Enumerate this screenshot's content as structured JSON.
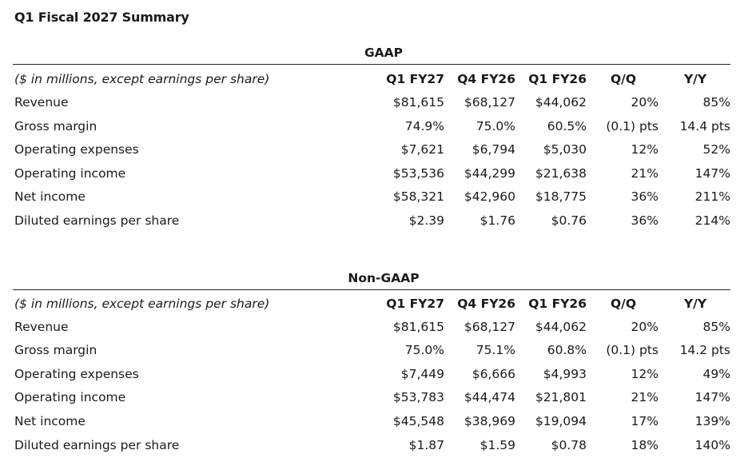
{
  "title": "Q1 Fiscal 2027 Summary",
  "sections": [
    {
      "name": "GAAP",
      "header": {
        "label": "($ in millions, except earnings per share)",
        "cols": [
          "Q1 FY27",
          "Q4 FY26",
          "Q1 FY26",
          "Q/Q",
          "Y/Y"
        ]
      },
      "rows": [
        {
          "label": "Revenue",
          "values": [
            "$81,615",
            "$68,127",
            "$44,062",
            "20%",
            "85%"
          ]
        },
        {
          "label": "Gross margin",
          "values": [
            "74.9%",
            "75.0%",
            "60.5%",
            "(0.1) pts",
            "14.4 pts"
          ]
        },
        {
          "label": "Operating expenses",
          "values": [
            "$7,621",
            "$6,794",
            "$5,030",
            "12%",
            "52%"
          ]
        },
        {
          "label": "Operating income",
          "values": [
            "$53,536",
            "$44,299",
            "$21,638",
            "21%",
            "147%"
          ]
        },
        {
          "label": "Net income",
          "values": [
            "$58,321",
            "$42,960",
            "$18,775",
            "36%",
            "211%"
          ]
        },
        {
          "label": "Diluted earnings per share",
          "values": [
            "$2.39",
            "$1.76",
            "$0.76",
            "36%",
            "214%"
          ]
        }
      ]
    },
    {
      "name": "Non-GAAP",
      "header": {
        "label": "($ in millions, except earnings per share)",
        "cols": [
          "Q1 FY27",
          "Q4 FY26",
          "Q1 FY26",
          "Q/Q",
          "Y/Y"
        ]
      },
      "rows": [
        {
          "label": "Revenue",
          "values": [
            "$81,615",
            "$68,127",
            "$44,062",
            "20%",
            "85%"
          ]
        },
        {
          "label": "Gross margin",
          "values": [
            "75.0%",
            "75.1%",
            "60.8%",
            "(0.1) pts",
            "14.2 pts"
          ]
        },
        {
          "label": "Operating expenses",
          "values": [
            "$7,449",
            "$6,666",
            "$4,993",
            "12%",
            "49%"
          ]
        },
        {
          "label": "Operating income",
          "values": [
            "$53,783",
            "$44,474",
            "$21,801",
            "21%",
            "147%"
          ]
        },
        {
          "label": "Net income",
          "values": [
            "$45,548",
            "$38,969",
            "$19,094",
            "17%",
            "139%"
          ]
        },
        {
          "label": "Diluted earnings per share",
          "values": [
            "$1.87",
            "$1.59",
            "$0.78",
            "18%",
            "140%"
          ]
        }
      ]
    }
  ]
}
